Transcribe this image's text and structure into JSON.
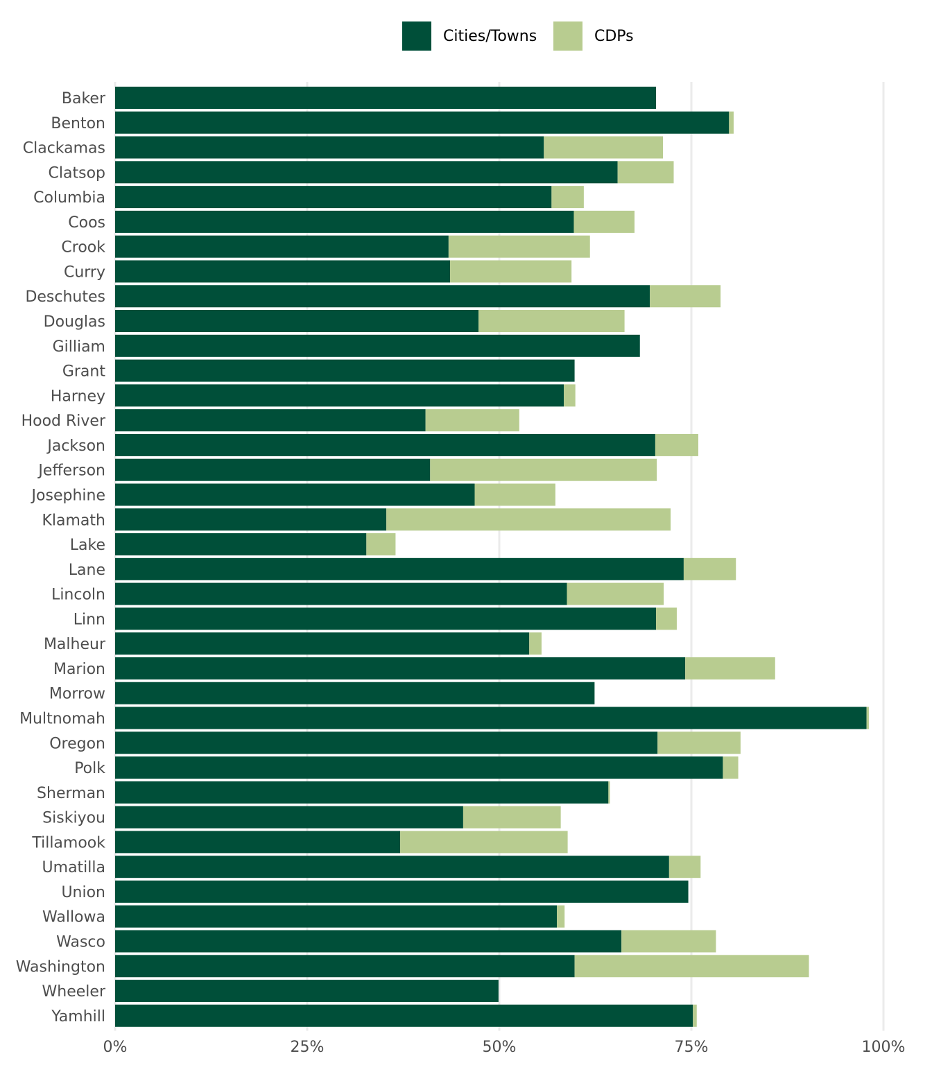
{
  "chart_data": {
    "type": "bar",
    "orientation": "horizontal",
    "stacked": true,
    "title": "",
    "xlabel": "",
    "ylabel": "",
    "xlim": [
      0,
      100
    ],
    "x_ticks": [
      "0%",
      "25%",
      "50%",
      "75%",
      "100%"
    ],
    "x_tick_values": [
      0,
      25,
      50,
      75,
      100
    ],
    "grid": "vertical major gridlines",
    "legend_position": "top",
    "categories": [
      "Baker",
      "Benton",
      "Clackamas",
      "Clatsop",
      "Columbia",
      "Coos",
      "Crook",
      "Curry",
      "Deschutes",
      "Douglas",
      "Gilliam",
      "Grant",
      "Harney",
      "Hood River",
      "Jackson",
      "Jefferson",
      "Josephine",
      "Klamath",
      "Lake",
      "Lane",
      "Lincoln",
      "Linn",
      "Malheur",
      "Marion",
      "Morrow",
      "Multnomah",
      "Oregon",
      "Polk",
      "Sherman",
      "Siskiyou",
      "Tillamook",
      "Umatilla",
      "Union",
      "Wallowa",
      "Wasco",
      "Washington",
      "Wheeler",
      "Yamhill"
    ],
    "series": [
      {
        "name": "Cities/Towns",
        "color": "#004f39",
        "values": [
          70.4,
          79.9,
          55.8,
          65.4,
          56.8,
          59.7,
          43.4,
          43.6,
          69.6,
          47.3,
          68.3,
          59.8,
          58.4,
          40.4,
          70.3,
          41.0,
          46.8,
          35.3,
          32.7,
          74.0,
          58.8,
          70.4,
          53.9,
          74.2,
          62.4,
          97.8,
          70.6,
          79.1,
          64.2,
          45.3,
          37.1,
          72.1,
          74.6,
          57.5,
          65.9,
          59.8,
          49.9,
          75.2
        ]
      },
      {
        "name": "CDPs",
        "color": "#b8cc90",
        "values": [
          0,
          0.6,
          15.5,
          7.3,
          4.2,
          7.9,
          18.4,
          15.8,
          9.2,
          19.0,
          0,
          0,
          1.5,
          12.2,
          5.6,
          29.5,
          10.5,
          37.0,
          3.8,
          6.8,
          12.6,
          2.7,
          1.6,
          11.7,
          0,
          0.3,
          10.8,
          2.0,
          0.2,
          12.7,
          21.8,
          4.1,
          0,
          1.0,
          12.3,
          30.5,
          0,
          0.5
        ]
      }
    ]
  },
  "legend": {
    "items": [
      {
        "label": "Cities/Towns",
        "color": "#004f39"
      },
      {
        "label": "CDPs",
        "color": "#b8cc90"
      }
    ]
  },
  "colors": {
    "grid": "#ebebeb",
    "axis_text": "#4d4d4d"
  }
}
